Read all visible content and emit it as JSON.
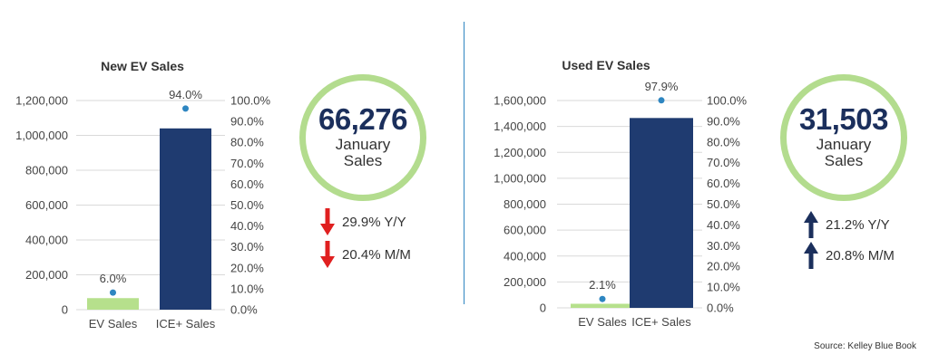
{
  "chart_data": [
    {
      "type": "bar",
      "title": "New EV Sales",
      "categories": [
        "EV Sales",
        "ICE+ Sales"
      ],
      "series": [
        {
          "type": "bar",
          "values": [
            66276,
            1040000
          ],
          "color": "#b6e08c"
        },
        {
          "type": "scatter",
          "axis": "right",
          "values": [
            6.0,
            94.0
          ],
          "labels": [
            "6.0%",
            "94.0%"
          ],
          "color": "#2e86c1"
        }
      ],
      "bar_colors": [
        "#b6e08c",
        "#1f3b70"
      ],
      "ylim": [
        0,
        1200000
      ],
      "yticks": [
        "0",
        "200,000",
        "400,000",
        "600,000",
        "800,000",
        "1,000,000",
        "1,200,000"
      ],
      "y2lim": [
        0,
        100
      ],
      "y2ticks": [
        "0.0%",
        "10.0%",
        "20.0%",
        "30.0%",
        "40.0%",
        "50.0%",
        "60.0%",
        "70.0%",
        "80.0%",
        "90.0%",
        "100.0%"
      ],
      "grid": true
    },
    {
      "type": "bar",
      "title": "Used EV Sales",
      "categories": [
        "EV Sales",
        "ICE+ Sales"
      ],
      "series": [
        {
          "type": "bar",
          "values": [
            31503,
            1465000
          ],
          "color": "#b6e08c"
        },
        {
          "type": "scatter",
          "axis": "right",
          "values": [
            2.1,
            97.9
          ],
          "labels": [
            "2.1%",
            "97.9%"
          ],
          "color": "#2e86c1"
        }
      ],
      "bar_colors": [
        "#b6e08c",
        "#1f3b70"
      ],
      "ylim": [
        0,
        1600000
      ],
      "yticks": [
        "0",
        "200,000",
        "400,000",
        "600,000",
        "800,000",
        "1,000,000",
        "1,200,000",
        "1,400,000",
        "1,600,000"
      ],
      "y2lim": [
        0,
        100
      ],
      "y2ticks": [
        "0.0%",
        "10.0%",
        "20.0%",
        "30.0%",
        "40.0%",
        "50.0%",
        "60.0%",
        "70.0%",
        "80.0%",
        "90.0%",
        "100.0%"
      ],
      "grid": true
    }
  ],
  "kpis": [
    {
      "value": "66,276",
      "label_line1": "January",
      "label_line2": "Sales",
      "changes": [
        {
          "text": "29.9% Y/Y",
          "direction": "down",
          "color": "#e02020"
        },
        {
          "text": "20.4% M/M",
          "direction": "down",
          "color": "#e02020"
        }
      ]
    },
    {
      "value": "31,503",
      "label_line1": "January",
      "label_line2": "Sales",
      "changes": [
        {
          "text": "21.2% Y/Y",
          "direction": "up",
          "color": "#1b2f5c"
        },
        {
          "text": "20.8% M/M",
          "direction": "up",
          "color": "#1b2f5c"
        }
      ]
    }
  ],
  "colors": {
    "kpi_ring": "#b3dc8e",
    "divider": "#2e86c1",
    "kpi_value": "#1b2f5c"
  },
  "source": "Source: Kelley Blue Book"
}
